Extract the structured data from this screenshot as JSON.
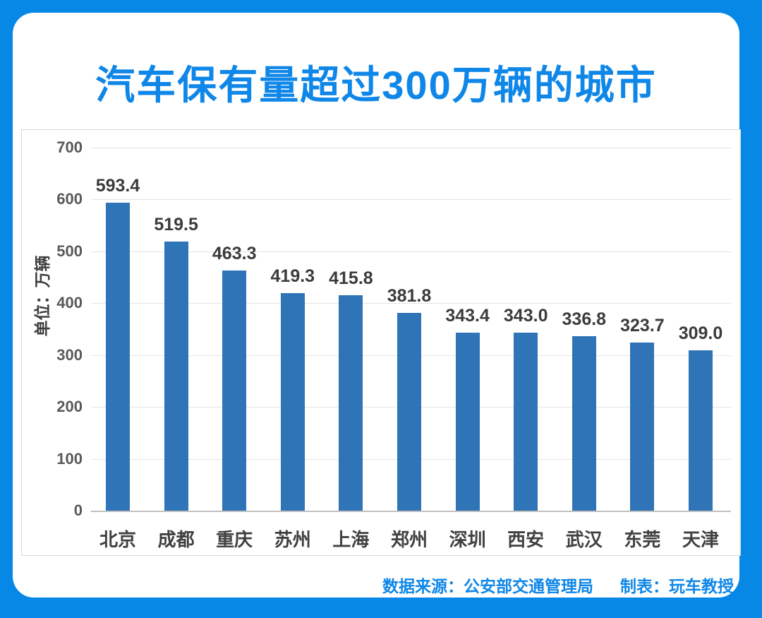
{
  "title": "汽车保有量超过300万辆的城市",
  "chart_data": {
    "type": "bar",
    "categories": [
      "北京",
      "成都",
      "重庆",
      "苏州",
      "上海",
      "郑州",
      "深圳",
      "西安",
      "武汉",
      "东莞",
      "天津"
    ],
    "values": [
      593.4,
      519.5,
      463.3,
      419.3,
      415.8,
      381.8,
      343.4,
      343.0,
      336.8,
      323.7,
      309.0
    ],
    "value_labels": [
      "593.4",
      "519.5",
      "463.3",
      "419.3",
      "415.8",
      "381.8",
      "343.4",
      "343.0",
      "336.8",
      "323.7",
      "309.0"
    ],
    "title": "汽车保有量超过300万辆的城市",
    "xlabel": "",
    "ylabel": "单位：万辆",
    "ylim": [
      0,
      700
    ],
    "yticks": [
      0,
      100,
      200,
      300,
      400,
      500,
      600,
      700
    ],
    "grid": true,
    "legend": "none",
    "bar_color": "#2e74b6"
  },
  "footer": {
    "source": "数据来源：公安部交通管理局",
    "maker": "制表：玩车教授"
  },
  "colors": {
    "frame_blue": "#0787e6",
    "title_blue": "#0f87e8",
    "bar_blue": "#2e74b6",
    "gridline": "#e4e4e4"
  }
}
